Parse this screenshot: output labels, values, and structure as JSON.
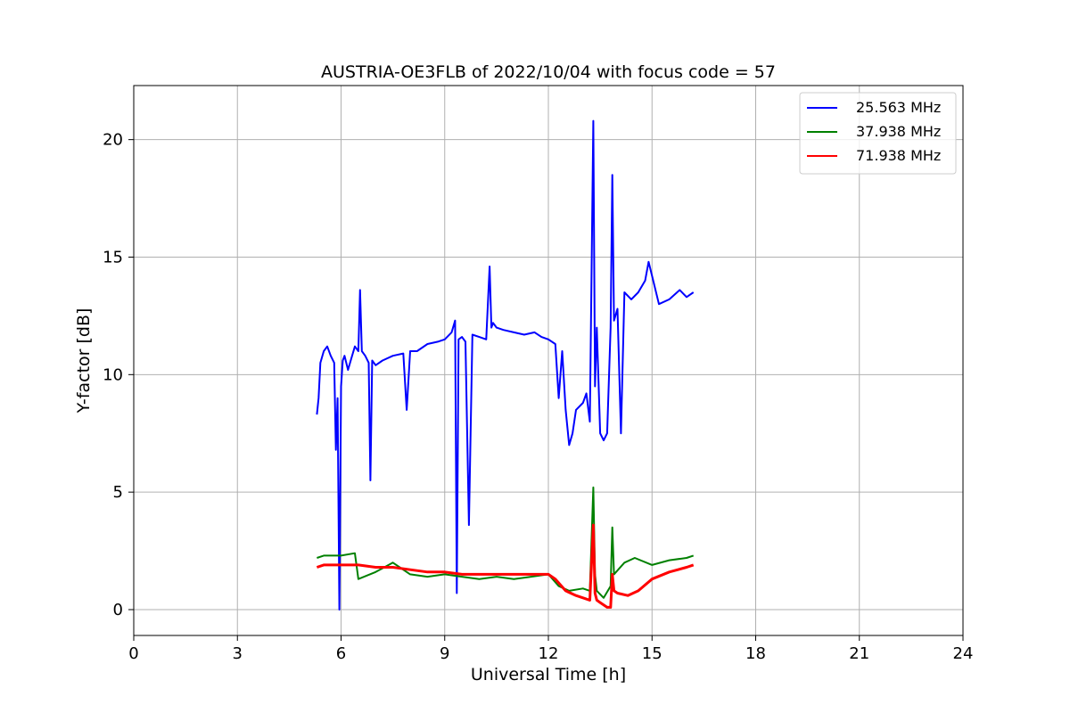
{
  "chart_data": {
    "type": "line",
    "title": "AUSTRIA-OE3FLB of 2022/10/04 with focus code = 57",
    "xlabel": "Universal Time [h]",
    "ylabel": "Y-factor [dB]",
    "xlim": [
      0,
      24
    ],
    "ylim": [
      -1.1,
      22.3
    ],
    "xticks": [
      0,
      3,
      6,
      9,
      12,
      15,
      18,
      21,
      24
    ],
    "yticks": [
      0,
      5,
      10,
      15,
      20
    ],
    "grid": true,
    "legend_position": "top-right",
    "series": [
      {
        "name": "25.563 MHz",
        "color": "#0000ff",
        "x": [
          5.3,
          5.35,
          5.4,
          5.5,
          5.6,
          5.7,
          5.8,
          5.85,
          5.9,
          5.95,
          6.0,
          6.05,
          6.1,
          6.2,
          6.3,
          6.4,
          6.5,
          6.55,
          6.6,
          6.7,
          6.8,
          6.85,
          6.9,
          7.0,
          7.2,
          7.5,
          7.8,
          7.9,
          8.0,
          8.2,
          8.5,
          8.8,
          9.0,
          9.2,
          9.3,
          9.35,
          9.4,
          9.5,
          9.6,
          9.7,
          9.8,
          10.0,
          10.2,
          10.3,
          10.35,
          10.4,
          10.5,
          10.7,
          11.0,
          11.3,
          11.6,
          11.8,
          12.0,
          12.2,
          12.3,
          12.4,
          12.5,
          12.6,
          12.7,
          12.8,
          13.0,
          13.1,
          13.2,
          13.3,
          13.35,
          13.4,
          13.5,
          13.6,
          13.7,
          13.8,
          13.85,
          13.9,
          14.0,
          14.1,
          14.2,
          14.4,
          14.6,
          14.8,
          14.9,
          15.0,
          15.2,
          15.5,
          15.8,
          16.0,
          16.2
        ],
        "y": [
          8.3,
          9.0,
          10.5,
          11.0,
          11.2,
          10.8,
          10.5,
          6.8,
          9.0,
          0.0,
          9.5,
          10.6,
          10.8,
          10.2,
          10.7,
          11.2,
          11.0,
          13.6,
          11.0,
          10.8,
          10.5,
          5.5,
          10.6,
          10.4,
          10.6,
          10.8,
          10.9,
          8.5,
          11.0,
          11.0,
          11.3,
          11.4,
          11.5,
          11.8,
          12.3,
          0.7,
          11.5,
          11.6,
          11.4,
          3.6,
          11.7,
          11.6,
          11.5,
          14.6,
          12.0,
          12.2,
          12.0,
          11.9,
          11.8,
          11.7,
          11.8,
          11.6,
          11.5,
          11.3,
          9.0,
          11.0,
          8.5,
          7.0,
          7.5,
          8.5,
          8.8,
          9.2,
          8.0,
          20.8,
          9.5,
          12.0,
          7.5,
          7.2,
          7.5,
          12.0,
          18.5,
          12.3,
          12.8,
          7.5,
          13.5,
          13.2,
          13.5,
          14.0,
          14.8,
          14.2,
          13.0,
          13.2,
          13.6,
          13.3,
          13.5
        ]
      },
      {
        "name": "37.938 MHz",
        "color": "#008000",
        "x": [
          5.3,
          5.5,
          6.0,
          6.4,
          6.5,
          7.0,
          7.5,
          8.0,
          8.5,
          9.0,
          9.5,
          10.0,
          10.5,
          11.0,
          11.5,
          12.0,
          12.3,
          12.6,
          13.0,
          13.2,
          13.3,
          13.35,
          13.4,
          13.6,
          13.8,
          13.85,
          13.9,
          14.2,
          14.5,
          15.0,
          15.5,
          16.0,
          16.2
        ],
        "y": [
          2.2,
          2.3,
          2.3,
          2.4,
          1.3,
          1.6,
          2.0,
          1.5,
          1.4,
          1.5,
          1.4,
          1.3,
          1.4,
          1.3,
          1.4,
          1.5,
          1.0,
          0.8,
          0.9,
          0.8,
          5.2,
          1.5,
          0.8,
          0.5,
          1.0,
          3.5,
          1.5,
          2.0,
          2.2,
          1.9,
          2.1,
          2.2,
          2.3
        ]
      },
      {
        "name": "71.938 MHz",
        "color": "#ff0000",
        "x": [
          5.3,
          5.5,
          6.0,
          6.5,
          7.0,
          7.5,
          8.0,
          8.5,
          9.0,
          9.5,
          10.0,
          10.5,
          11.0,
          11.5,
          12.0,
          12.2,
          12.5,
          12.8,
          13.0,
          13.2,
          13.3,
          13.35,
          13.4,
          13.5,
          13.6,
          13.7,
          13.8,
          13.85,
          13.9,
          14.0,
          14.3,
          14.6,
          15.0,
          15.5,
          16.0,
          16.2
        ],
        "y": [
          1.8,
          1.9,
          1.9,
          1.9,
          1.8,
          1.8,
          1.7,
          1.6,
          1.6,
          1.5,
          1.5,
          1.5,
          1.5,
          1.5,
          1.5,
          1.3,
          0.8,
          0.6,
          0.5,
          0.4,
          3.6,
          0.7,
          0.4,
          0.3,
          0.2,
          0.1,
          0.1,
          1.5,
          0.8,
          0.7,
          0.6,
          0.8,
          1.3,
          1.6,
          1.8,
          1.9
        ]
      }
    ]
  }
}
